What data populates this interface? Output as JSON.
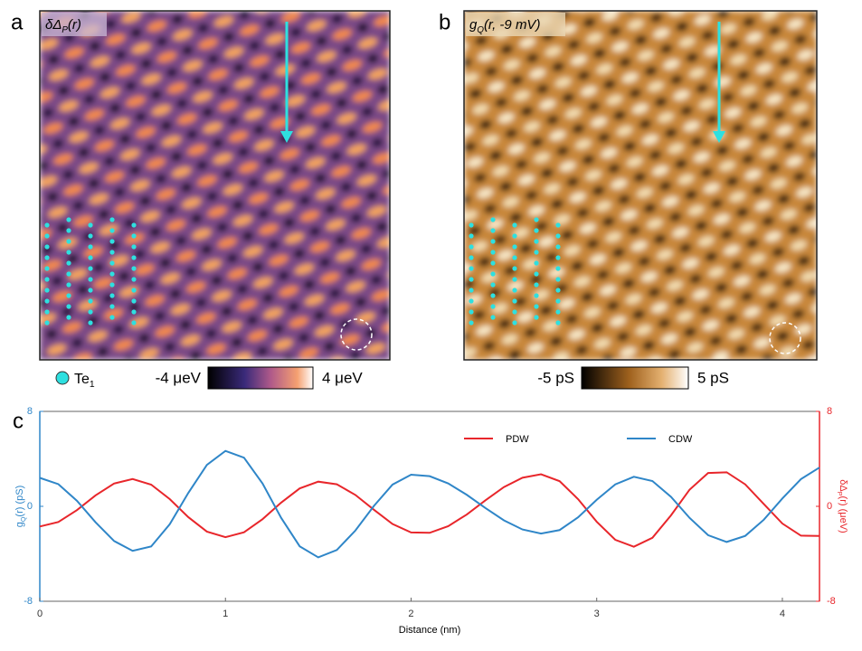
{
  "panels": [
    {
      "letter": "a",
      "label": [
        {
          "text": "δΔ"
        },
        {
          "text": "P",
          "sub": true
        },
        {
          "text": "(r)"
        }
      ],
      "colorbar": {
        "min": "-4 μeV",
        "max": "4 μeV"
      },
      "legend": [
        {
          "text": "Te"
        },
        {
          "text": "1",
          "sub": true
        }
      ]
    },
    {
      "letter": "b",
      "label": [
        {
          "text": "g"
        },
        {
          "text": "Q",
          "sub": true
        },
        {
          "text": "(r, -9 mV)"
        }
      ],
      "colorbar": {
        "min": "-5 pS",
        "max": "5 pS"
      }
    }
  ],
  "chart_letter": "c",
  "chart_data": {
    "type": "line",
    "xlabel": "Distance (nm)",
    "ylabel": [
      {
        "text": "g"
      },
      {
        "text": "Q",
        "sub": true
      },
      {
        "text": "(r) (pS)"
      }
    ],
    "y2label": [
      {
        "text": "δΔ"
      },
      {
        "text": "P",
        "sub": true
      },
      {
        "text": "(r) (μeV)"
      }
    ],
    "xlim": [
      0,
      4.2
    ],
    "xticks": [
      0,
      1,
      2,
      3,
      4
    ],
    "ylim": [
      -8,
      8
    ],
    "yticks": [
      -8,
      0,
      8
    ],
    "y2lim": [
      -8,
      8
    ],
    "y2ticks": [
      -8,
      0,
      8
    ],
    "x": [
      0,
      0.1,
      0.2,
      0.3,
      0.4,
      0.5,
      0.6,
      0.7,
      0.8,
      0.9,
      1.0,
      1.1,
      1.2,
      1.3,
      1.4,
      1.5,
      1.6,
      1.7,
      1.8,
      1.9,
      2.0,
      2.1,
      2.2,
      2.3,
      2.4,
      2.5,
      2.6,
      2.7,
      2.8,
      2.9,
      3.0,
      3.1,
      3.2,
      3.3,
      3.4,
      3.5,
      3.6,
      3.7,
      3.8,
      3.9,
      4.0,
      4.1,
      4.2
    ],
    "series": [
      {
        "name": "PDW",
        "color": "#e8262b",
        "axis": "y2",
        "values": [
          -1.7,
          -1.32,
          -0.32,
          0.92,
          1.92,
          2.3,
          1.83,
          0.61,
          -0.91,
          -2.13,
          -2.6,
          -2.19,
          -1.08,
          0.31,
          1.51,
          2.08,
          1.86,
          0.96,
          -0.29,
          -1.49,
          -2.2,
          -2.23,
          -1.67,
          -0.69,
          0.5,
          1.62,
          2.41,
          2.7,
          2.12,
          0.6,
          -1.3,
          -2.82,
          -3.4,
          -2.65,
          -0.76,
          1.4,
          2.81,
          2.87,
          1.85,
          0.2,
          -1.45,
          -2.47,
          -2.5
        ]
      },
      {
        "name": "CDW",
        "color": "#2f86c8",
        "values": [
          2.4,
          1.87,
          0.47,
          -1.34,
          -2.92,
          -3.75,
          -3.38,
          -1.51,
          1.13,
          3.49,
          4.67,
          4.1,
          1.92,
          -0.97,
          -3.37,
          -4.3,
          -3.68,
          -2.04,
          0.04,
          1.83,
          2.67,
          2.54,
          1.93,
          0.97,
          -0.14,
          -1.18,
          -1.95,
          -2.29,
          -2.0,
          -0.92,
          0.55,
          1.85,
          2.49,
          2.13,
          0.8,
          -0.97,
          -2.43,
          -3.0,
          -2.49,
          -1.13,
          0.66,
          2.29,
          3.27
        ]
      }
    ]
  }
}
